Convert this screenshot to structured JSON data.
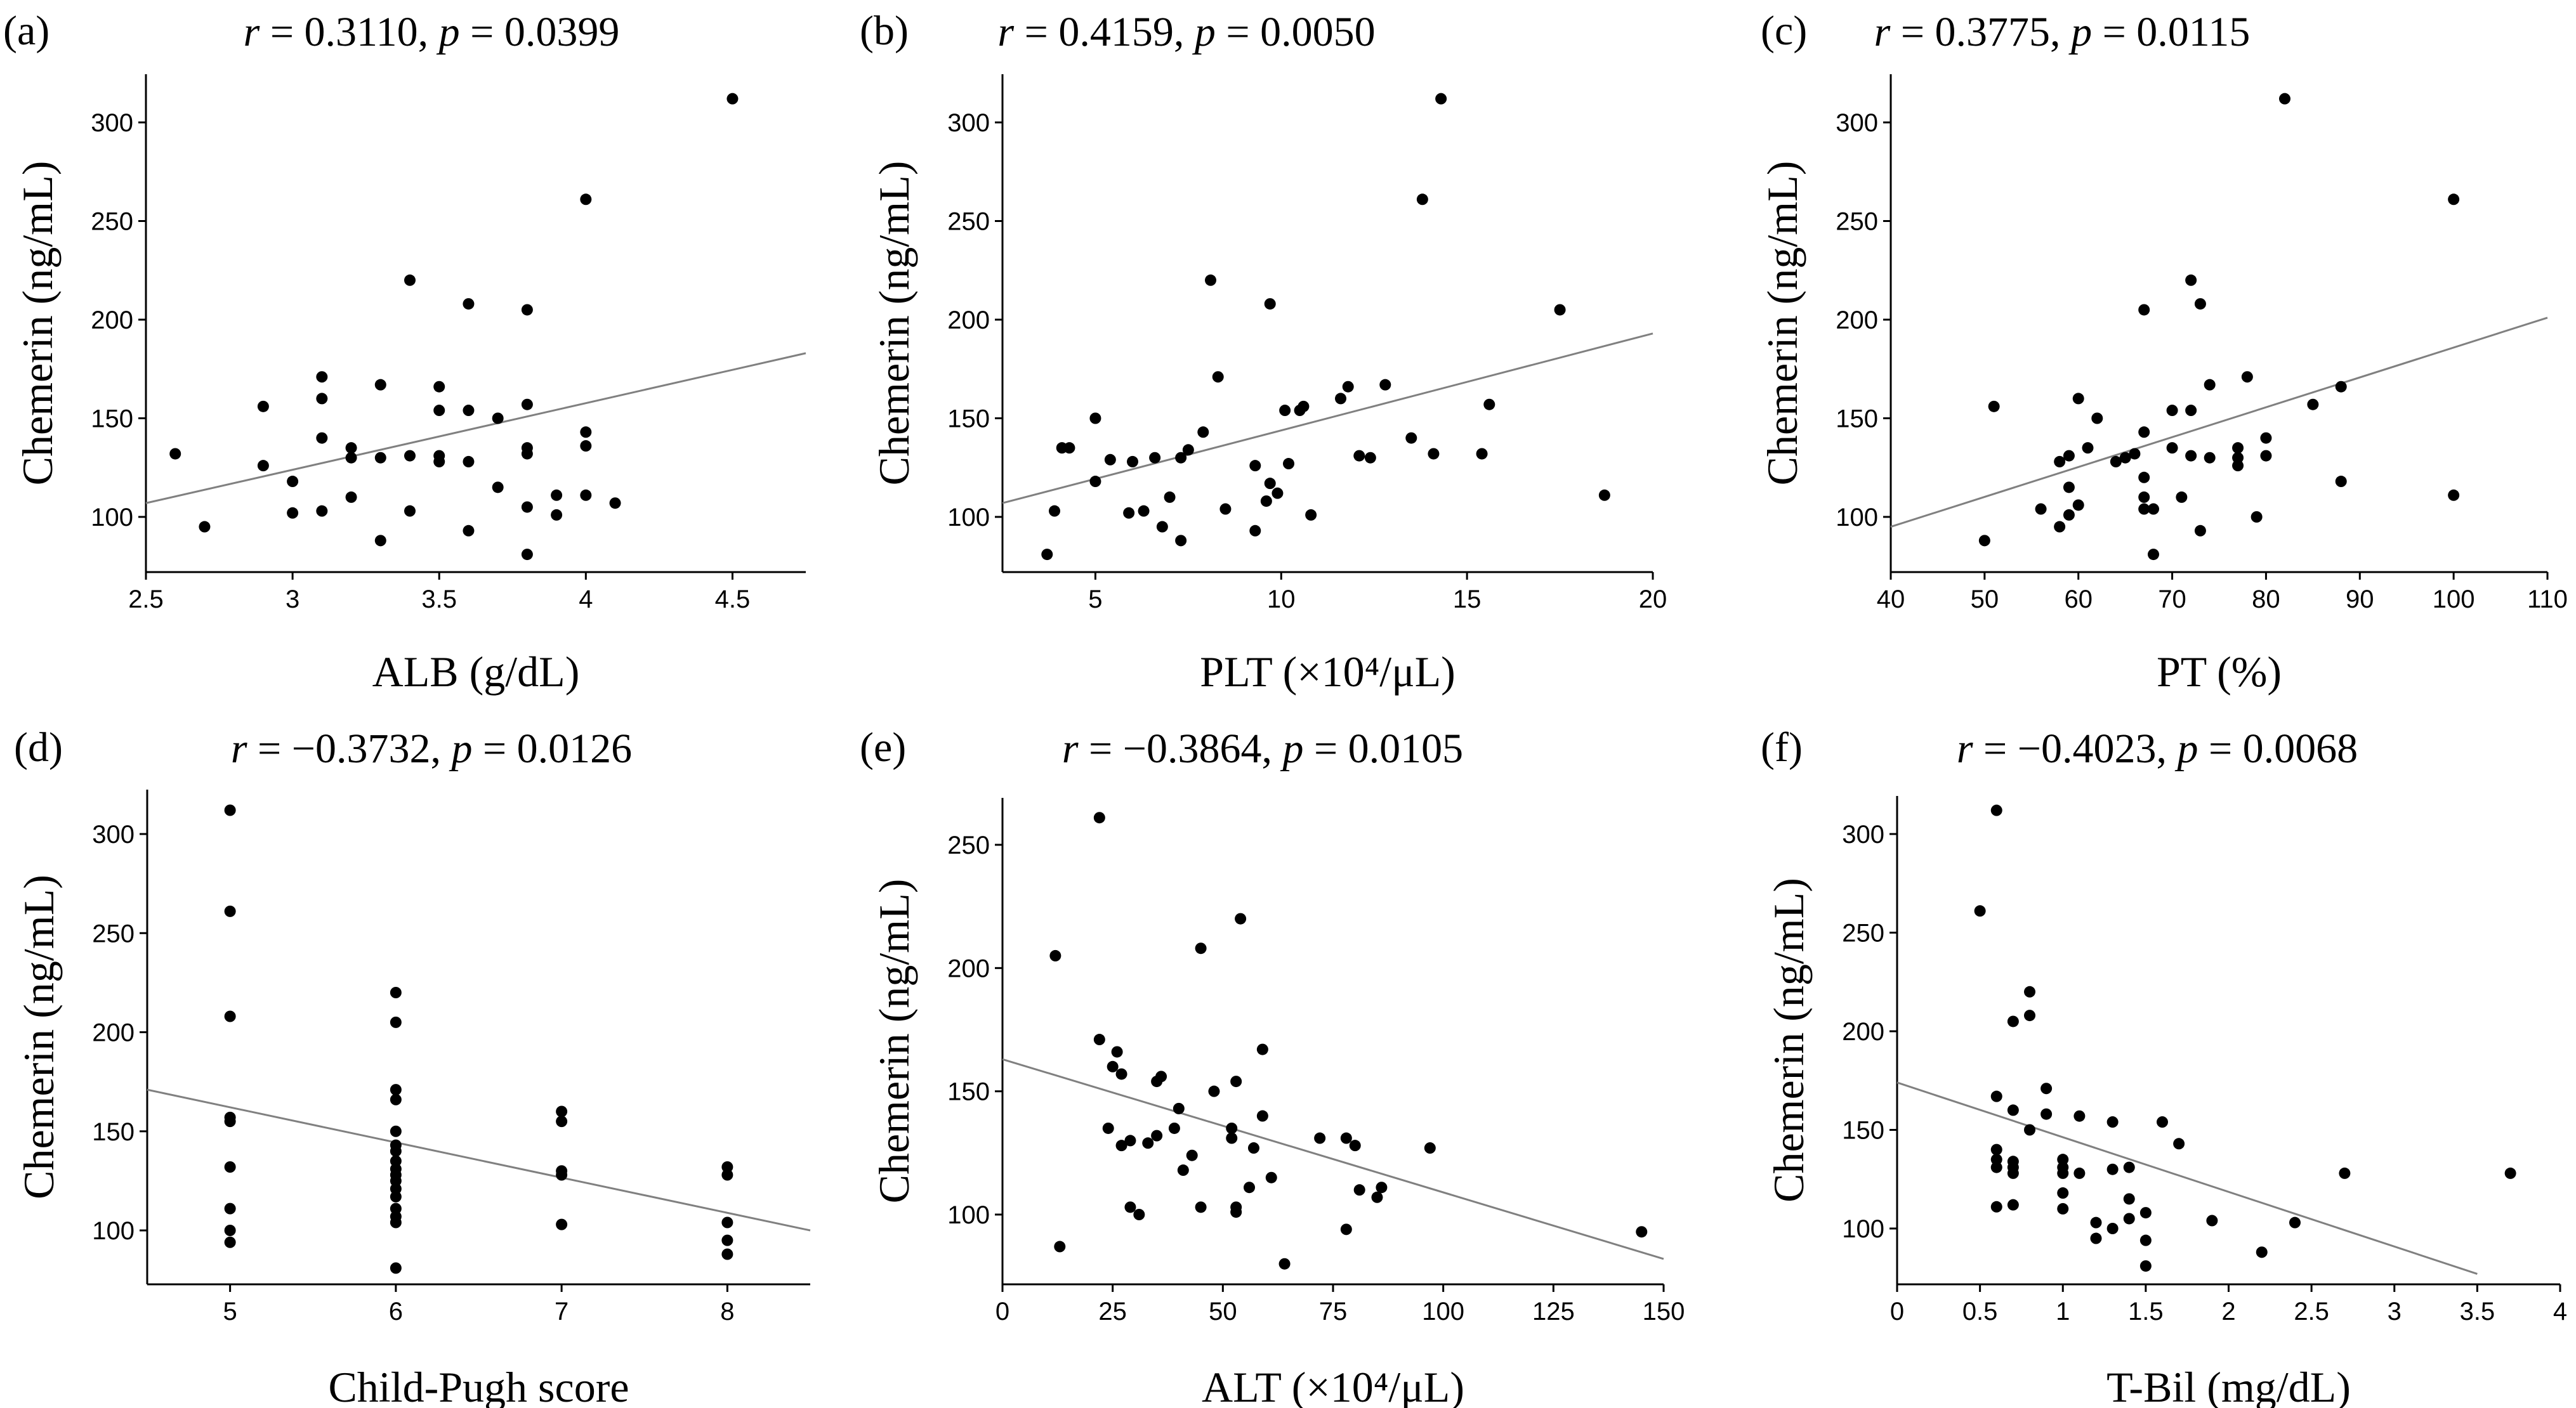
{
  "chart_data": [
    {
      "type": "scatter",
      "letter": "(a)",
      "stats": {
        "r_label": "r",
        "r_value": "= 0.3110,",
        "p_label": "p",
        "p_value": "= 0.0399"
      },
      "xlabel": "ALB (g/dL)",
      "ylabel": "Chemerin (ng/mL)",
      "xlim": [
        2.5,
        4.75
      ],
      "ylim": [
        77,
        325
      ],
      "xticks": [
        2.5,
        3,
        3.5,
        4,
        4.5
      ],
      "xtick_labels": [
        "2.5",
        "3",
        "3.5",
        "4",
        "4.5"
      ],
      "yticks": [
        100,
        150,
        200,
        250,
        300
      ],
      "ytick_labels": [
        "100",
        "150",
        "200",
        "250",
        "300"
      ],
      "trend": [
        [
          2.5,
          107
        ],
        [
          4.75,
          183
        ]
      ],
      "points": [
        [
          2.6,
          132
        ],
        [
          2.7,
          95
        ],
        [
          2.9,
          156
        ],
        [
          2.9,
          126
        ],
        [
          3.0,
          118
        ],
        [
          3.0,
          102
        ],
        [
          3.1,
          171
        ],
        [
          3.1,
          160
        ],
        [
          3.1,
          140
        ],
        [
          3.1,
          103
        ],
        [
          3.2,
          135
        ],
        [
          3.2,
          130
        ],
        [
          3.2,
          110
        ],
        [
          3.3,
          167
        ],
        [
          3.3,
          130
        ],
        [
          3.3,
          88
        ],
        [
          3.4,
          220
        ],
        [
          3.4,
          131
        ],
        [
          3.4,
          103
        ],
        [
          3.5,
          166
        ],
        [
          3.5,
          154
        ],
        [
          3.5,
          131
        ],
        [
          3.5,
          128
        ],
        [
          3.6,
          208
        ],
        [
          3.6,
          154
        ],
        [
          3.6,
          128
        ],
        [
          3.6,
          93
        ],
        [
          3.7,
          150
        ],
        [
          3.7,
          115
        ],
        [
          3.8,
          205
        ],
        [
          3.8,
          157
        ],
        [
          3.8,
          135
        ],
        [
          3.8,
          132
        ],
        [
          3.8,
          105
        ],
        [
          3.8,
          81
        ],
        [
          3.9,
          111
        ],
        [
          3.9,
          101
        ],
        [
          4.0,
          261
        ],
        [
          4.0,
          143
        ],
        [
          4.0,
          136
        ],
        [
          4.0,
          111
        ],
        [
          4.1,
          107
        ],
        [
          4.5,
          312
        ]
      ]
    },
    {
      "type": "scatter",
      "letter": "(b)",
      "stats": {
        "r_label": "r",
        "r_value": "= 0.4159,",
        "p_label": "p",
        "p_value": "= 0.0050"
      },
      "xlabel": "PLT (×10⁴/μL)",
      "ylabel": "Chemerin (ng/mL)",
      "xlim": [
        2.5,
        20
      ],
      "ylim": [
        77,
        325
      ],
      "xticks": [
        5,
        10,
        15,
        20
      ],
      "xtick_labels": [
        "5",
        "10",
        "15",
        "20"
      ],
      "yticks": [
        100,
        150,
        200,
        250,
        300
      ],
      "ytick_labels": [
        "100",
        "150",
        "200",
        "250",
        "300"
      ],
      "trend": [
        [
          2.5,
          107
        ],
        [
          20,
          193
        ]
      ],
      "points": [
        [
          3.7,
          81
        ],
        [
          3.9,
          103
        ],
        [
          4.1,
          135
        ],
        [
          4.3,
          135
        ],
        [
          5.0,
          150
        ],
        [
          5.0,
          118
        ],
        [
          5.4,
          129
        ],
        [
          5.9,
          102
        ],
        [
          6.0,
          128
        ],
        [
          6.3,
          103
        ],
        [
          6.6,
          130
        ],
        [
          6.8,
          95
        ],
        [
          7.0,
          110
        ],
        [
          7.3,
          130
        ],
        [
          7.3,
          88
        ],
        [
          7.5,
          134
        ],
        [
          7.9,
          143
        ],
        [
          8.1,
          220
        ],
        [
          8.3,
          171
        ],
        [
          8.5,
          104
        ],
        [
          9.3,
          93
        ],
        [
          9.3,
          126
        ],
        [
          9.6,
          108
        ],
        [
          9.7,
          208
        ],
        [
          9.7,
          117
        ],
        [
          9.9,
          112
        ],
        [
          10.1,
          154
        ],
        [
          10.2,
          127
        ],
        [
          10.5,
          154
        ],
        [
          10.6,
          156
        ],
        [
          10.8,
          101
        ],
        [
          11.6,
          160
        ],
        [
          11.8,
          166
        ],
        [
          12.1,
          131
        ],
        [
          12.4,
          130
        ],
        [
          12.8,
          167
        ],
        [
          13.5,
          140
        ],
        [
          13.8,
          261
        ],
        [
          14.1,
          132
        ],
        [
          14.3,
          312
        ],
        [
          15.4,
          132
        ],
        [
          15.6,
          157
        ],
        [
          17.5,
          205
        ],
        [
          18.7,
          111
        ]
      ]
    },
    {
      "type": "scatter",
      "letter": "(c)",
      "stats": {
        "r_label": "r",
        "r_value": "= 0.3775,",
        "p_label": "p",
        "p_value": "= 0.0115"
      },
      "xlabel": "PT (%)",
      "ylabel": "Chemerin (ng/mL)",
      "xlim": [
        40,
        110
      ],
      "ylim": [
        77,
        325
      ],
      "xticks": [
        40,
        50,
        60,
        70,
        80,
        90,
        100,
        110
      ],
      "xtick_labels": [
        "40",
        "50",
        "60",
        "70",
        "80",
        "90",
        "100",
        "110"
      ],
      "yticks": [
        100,
        150,
        200,
        250,
        300
      ],
      "ytick_labels": [
        "100",
        "150",
        "200",
        "250",
        "300"
      ],
      "trend": [
        [
          40,
          95
        ],
        [
          110,
          201
        ]
      ],
      "points": [
        [
          50,
          88
        ],
        [
          51,
          156
        ],
        [
          56,
          104
        ],
        [
          58,
          95
        ],
        [
          58,
          128
        ],
        [
          59,
          131
        ],
        [
          59,
          115
        ],
        [
          59,
          101
        ],
        [
          60,
          160
        ],
        [
          60,
          106
        ],
        [
          61,
          135
        ],
        [
          62,
          150
        ],
        [
          64,
          128
        ],
        [
          65,
          130
        ],
        [
          66,
          132
        ],
        [
          67,
          205
        ],
        [
          67,
          143
        ],
        [
          67,
          120
        ],
        [
          67,
          104
        ],
        [
          67,
          110
        ],
        [
          68,
          81
        ],
        [
          68,
          104
        ],
        [
          70,
          154
        ],
        [
          70,
          135
        ],
        [
          71,
          110
        ],
        [
          72,
          220
        ],
        [
          72,
          154
        ],
        [
          72,
          131
        ],
        [
          73,
          208
        ],
        [
          73,
          93
        ],
        [
          74,
          167
        ],
        [
          74,
          130
        ],
        [
          77,
          135
        ],
        [
          77,
          130
        ],
        [
          77,
          126
        ],
        [
          78,
          171
        ],
        [
          79,
          100
        ],
        [
          80,
          140
        ],
        [
          80,
          131
        ],
        [
          82,
          312
        ],
        [
          85,
          157
        ],
        [
          88,
          166
        ],
        [
          88,
          118
        ],
        [
          100,
          261
        ],
        [
          100,
          111
        ]
      ]
    },
    {
      "type": "scatter",
      "letter": "(d)",
      "stats": {
        "r_label": "r",
        "r_value": "= −0.3732,",
        "p_label": "p",
        "p_value": "= 0.0126"
      },
      "xlabel": "Child-Pugh score",
      "ylabel": "Chemerin (ng/mL)",
      "xlim": [
        4.5,
        8.5
      ],
      "ylim": [
        77,
        325
      ],
      "xticks": [
        5,
        6,
        7,
        8
      ],
      "xtick_labels": [
        "5",
        "6",
        "7",
        "8"
      ],
      "yticks": [
        100,
        150,
        200,
        250,
        300
      ],
      "ytick_labels": [
        "100",
        "150",
        "200",
        "250",
        "300"
      ],
      "trend": [
        [
          4.5,
          171
        ],
        [
          8.5,
          100
        ]
      ],
      "points": [
        [
          5,
          312
        ],
        [
          5,
          261
        ],
        [
          5,
          208
        ],
        [
          5,
          157
        ],
        [
          5,
          155
        ],
        [
          5,
          132
        ],
        [
          5,
          111
        ],
        [
          5,
          100
        ],
        [
          5,
          94
        ],
        [
          6,
          220
        ],
        [
          6,
          205
        ],
        [
          6,
          171
        ],
        [
          6,
          166
        ],
        [
          6,
          150
        ],
        [
          6,
          143
        ],
        [
          6,
          140
        ],
        [
          6,
          135
        ],
        [
          6,
          131
        ],
        [
          6,
          128
        ],
        [
          6,
          125
        ],
        [
          6,
          121
        ],
        [
          6,
          117
        ],
        [
          6,
          111
        ],
        [
          6,
          107
        ],
        [
          6,
          104
        ],
        [
          6,
          81
        ],
        [
          7,
          160
        ],
        [
          7,
          155
        ],
        [
          7,
          130
        ],
        [
          7,
          128
        ],
        [
          7,
          103
        ],
        [
          8,
          132
        ],
        [
          8,
          128
        ],
        [
          8,
          104
        ],
        [
          8,
          95
        ],
        [
          8,
          88
        ]
      ]
    },
    {
      "type": "scatter",
      "letter": "(e)",
      "stats": {
        "r_label": "r",
        "r_value": "= −0.3864,",
        "p_label": "p",
        "p_value": "= 0.0105"
      },
      "xlabel": "ALT (×10⁴/μL)",
      "ylabel": "Chemerin (ng/mL)",
      "xlim": [
        0,
        150
      ],
      "ylim": [
        77,
        270
      ],
      "xticks": [
        0,
        25,
        50,
        75,
        100,
        125,
        150
      ],
      "xtick_labels": [
        "0",
        "25",
        "50",
        "75",
        "100",
        "125",
        "150"
      ],
      "yticks": [
        100,
        150,
        200,
        250
      ],
      "ytick_labels": [
        "100",
        "150",
        "200",
        "250"
      ],
      "trend": [
        [
          0,
          163
        ],
        [
          150,
          82
        ]
      ],
      "points": [
        [
          12,
          205
        ],
        [
          13,
          87
        ],
        [
          22,
          261
        ],
        [
          22,
          171
        ],
        [
          24,
          135
        ],
        [
          25,
          160
        ],
        [
          26,
          166
        ],
        [
          27,
          128
        ],
        [
          27,
          157
        ],
        [
          29,
          103
        ],
        [
          29,
          130
        ],
        [
          31,
          100
        ],
        [
          33,
          129
        ],
        [
          35,
          154
        ],
        [
          36,
          156
        ],
        [
          35,
          132
        ],
        [
          39,
          135
        ],
        [
          40,
          143
        ],
        [
          41,
          118
        ],
        [
          43,
          124
        ],
        [
          45,
          208
        ],
        [
          45,
          103
        ],
        [
          48,
          150
        ],
        [
          52,
          131
        ],
        [
          52,
          135
        ],
        [
          53,
          103
        ],
        [
          53,
          154
        ],
        [
          53,
          101
        ],
        [
          54,
          220
        ],
        [
          56,
          111
        ],
        [
          57,
          127
        ],
        [
          59,
          167
        ],
        [
          59,
          140
        ],
        [
          61,
          115
        ],
        [
          64,
          80
        ],
        [
          72,
          131
        ],
        [
          78,
          131
        ],
        [
          78,
          94
        ],
        [
          80,
          128
        ],
        [
          81,
          110
        ],
        [
          85,
          107
        ],
        [
          86,
          111
        ],
        [
          97,
          127
        ],
        [
          145,
          93
        ]
      ]
    },
    {
      "type": "scatter",
      "letter": "(f)",
      "stats": {
        "r_label": "r",
        "r_value": "= −0.4023,",
        "p_label": "p",
        "p_value": "= 0.0068"
      },
      "xlabel": "T-Bil (mg/dL)",
      "ylabel": "Chemerin (ng/mL)",
      "xlim": [
        0,
        4
      ],
      "ylim": [
        77,
        325
      ],
      "xticks": [
        0,
        0.5,
        1,
        1.5,
        2,
        2.5,
        3,
        3.5,
        4
      ],
      "xtick_labels": [
        "0",
        "0.5",
        "1",
        "1.5",
        "2",
        "2.5",
        "3",
        "3.5",
        "4"
      ],
      "yticks": [
        100,
        150,
        200,
        250,
        300
      ],
      "ytick_labels": [
        "100",
        "150",
        "200",
        "250",
        "300"
      ],
      "trend": [
        [
          0,
          174
        ],
        [
          3.5,
          77
        ]
      ],
      "points": [
        [
          0.5,
          261
        ],
        [
          0.6,
          312
        ],
        [
          0.6,
          167
        ],
        [
          0.6,
          140
        ],
        [
          0.6,
          135
        ],
        [
          0.6,
          131
        ],
        [
          0.6,
          111
        ],
        [
          0.7,
          205
        ],
        [
          0.7,
          160
        ],
        [
          0.7,
          134
        ],
        [
          0.7,
          131
        ],
        [
          0.7,
          128
        ],
        [
          0.7,
          112
        ],
        [
          0.8,
          220
        ],
        [
          0.8,
          208
        ],
        [
          0.8,
          150
        ],
        [
          0.9,
          171
        ],
        [
          0.9,
          158
        ],
        [
          1.0,
          135
        ],
        [
          1.0,
          131
        ],
        [
          1.0,
          128
        ],
        [
          1.0,
          118
        ],
        [
          1.0,
          110
        ],
        [
          1.1,
          157
        ],
        [
          1.1,
          128
        ],
        [
          1.2,
          103
        ],
        [
          1.2,
          95
        ],
        [
          1.3,
          154
        ],
        [
          1.3,
          130
        ],
        [
          1.3,
          100
        ],
        [
          1.4,
          131
        ],
        [
          1.4,
          115
        ],
        [
          1.4,
          105
        ],
        [
          1.5,
          108
        ],
        [
          1.5,
          94
        ],
        [
          1.5,
          81
        ],
        [
          1.6,
          154
        ],
        [
          1.7,
          143
        ],
        [
          1.9,
          104
        ],
        [
          2.2,
          88
        ],
        [
          2.4,
          103
        ],
        [
          2.7,
          128
        ],
        [
          3.7,
          128
        ]
      ]
    }
  ]
}
